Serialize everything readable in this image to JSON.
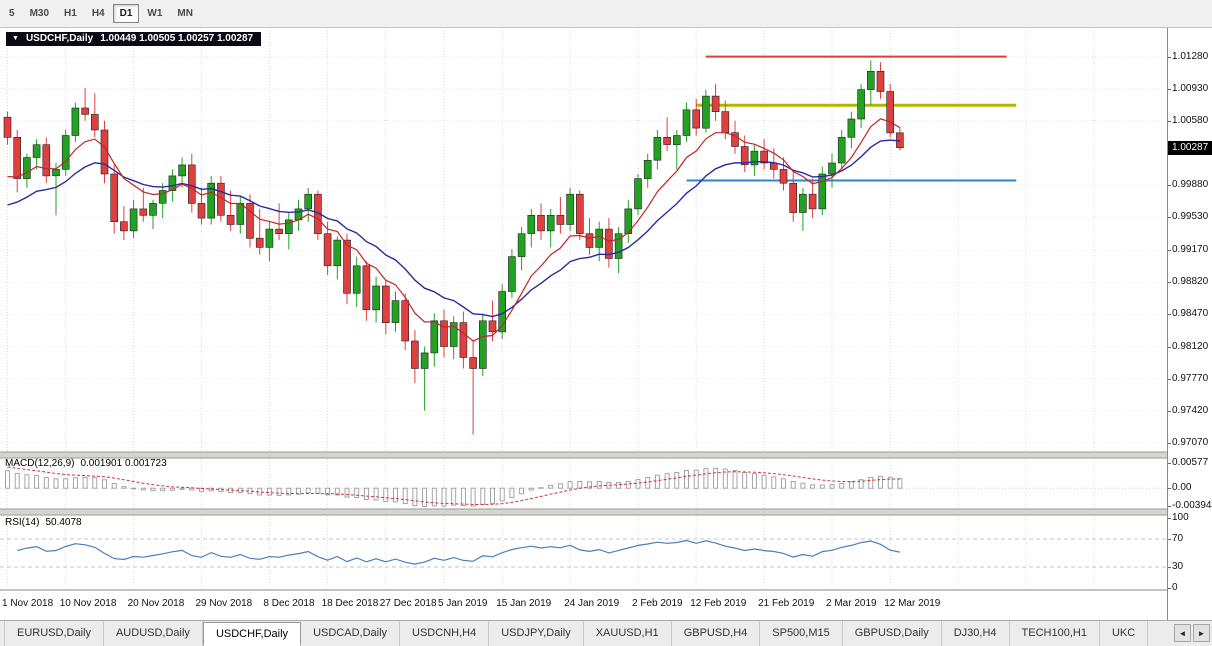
{
  "toolbar": {
    "timeframes": [
      {
        "label": "5",
        "active": false
      },
      {
        "label": "M30",
        "active": false
      },
      {
        "label": "H1",
        "active": false
      },
      {
        "label": "H4",
        "active": false
      },
      {
        "label": "D1",
        "active": true
      },
      {
        "label": "W1",
        "active": false
      },
      {
        "label": "MN",
        "active": false
      }
    ]
  },
  "chart": {
    "title_symbol": "USDCHF,Daily",
    "ohlc": "1.00449 1.00505 1.00257 1.00287",
    "dropdown_arrow": "▼"
  },
  "chart_data": {
    "type": "candlestick",
    "symbol": "USDCHF",
    "timeframe": "Daily",
    "current_price": "1.00287",
    "y_range": [
      0.9697,
      1.0157
    ],
    "price_axis_ticks": [
      "1.01280",
      "1.00930",
      "1.00580",
      "0.99880",
      "0.99530",
      "0.99170",
      "0.98820",
      "0.98470",
      "0.98120",
      "0.97770",
      "0.97420",
      "0.97070"
    ],
    "x_axis_ticks": [
      {
        "label": "1 Nov 2018",
        "index": 0
      },
      {
        "label": "10 Nov 2018",
        "index": 6
      },
      {
        "label": "20 Nov 2018",
        "index": 13
      },
      {
        "label": "29 Nov 2018",
        "index": 20
      },
      {
        "label": "8 Dec 2018",
        "index": 27
      },
      {
        "label": "18 Dec 2018",
        "index": 33
      },
      {
        "label": "27 Dec 2018",
        "index": 39
      },
      {
        "label": "5 Jan 2019",
        "index": 45
      },
      {
        "label": "15 Jan 2019",
        "index": 51
      },
      {
        "label": "24 Jan 2019",
        "index": 58
      },
      {
        "label": "2 Feb 2019",
        "index": 65
      },
      {
        "label": "12 Feb 2019",
        "index": 71
      },
      {
        "label": "21 Feb 2019",
        "index": 78
      },
      {
        "label": "2 Mar 2019",
        "index": 85
      },
      {
        "label": "12 Mar 2019",
        "index": 91
      }
    ],
    "candles": [
      [
        1.0062,
        1.0068,
        1.0032,
        1.004
      ],
      [
        1.004,
        1.0048,
        0.998,
        0.9995
      ],
      [
        0.9995,
        1.0022,
        0.9985,
        1.0018
      ],
      [
        1.0018,
        1.0038,
        1.0005,
        1.0032
      ],
      [
        1.0032,
        1.004,
        0.999,
        0.9998
      ],
      [
        0.9998,
        1.0012,
        0.9955,
        1.0005
      ],
      [
        1.0005,
        1.0048,
        0.9998,
        1.0042
      ],
      [
        1.0042,
        1.0078,
        1.0035,
        1.0072
      ],
      [
        1.0072,
        1.0094,
        1.0058,
        1.0065
      ],
      [
        1.0065,
        1.0088,
        1.004,
        1.0048
      ],
      [
        1.0048,
        1.0058,
        0.999,
        1.0
      ],
      [
        1.0,
        1.001,
        0.9935,
        0.9948
      ],
      [
        0.9948,
        0.9965,
        0.9928,
        0.9938
      ],
      [
        0.9938,
        0.9972,
        0.993,
        0.9962
      ],
      [
        0.9962,
        0.9985,
        0.9948,
        0.9955
      ],
      [
        0.9955,
        0.9972,
        0.994,
        0.9968
      ],
      [
        0.9968,
        0.999,
        0.9952,
        0.9982
      ],
      [
        0.9982,
        1.0005,
        0.997,
        0.9998
      ],
      [
        0.9998,
        1.0018,
        0.9985,
        1.001
      ],
      [
        1.001,
        1.0022,
        0.9958,
        0.9968
      ],
      [
        0.9968,
        0.9985,
        0.9945,
        0.9952
      ],
      [
        0.9952,
        0.9998,
        0.9945,
        0.999
      ],
      [
        0.999,
        0.9998,
        0.9948,
        0.9955
      ],
      [
        0.9955,
        0.9982,
        0.9938,
        0.9945
      ],
      [
        0.9945,
        0.9975,
        0.9935,
        0.9968
      ],
      [
        0.9968,
        0.9978,
        0.992,
        0.993
      ],
      [
        0.993,
        0.9962,
        0.9912,
        0.992
      ],
      [
        0.992,
        0.9948,
        0.9905,
        0.994
      ],
      [
        0.994,
        0.9968,
        0.9928,
        0.9935
      ],
      [
        0.9935,
        0.9958,
        0.9918,
        0.995
      ],
      [
        0.995,
        0.9972,
        0.9938,
        0.9962
      ],
      [
        0.9962,
        0.9985,
        0.9948,
        0.9978
      ],
      [
        0.9978,
        0.9982,
        0.9928,
        0.9935
      ],
      [
        0.9935,
        0.9948,
        0.989,
        0.99
      ],
      [
        0.99,
        0.9932,
        0.9885,
        0.9928
      ],
      [
        0.9928,
        0.9935,
        0.9858,
        0.987
      ],
      [
        0.987,
        0.991,
        0.9855,
        0.99
      ],
      [
        0.99,
        0.9905,
        0.984,
        0.9852
      ],
      [
        0.9852,
        0.9888,
        0.9838,
        0.9878
      ],
      [
        0.9878,
        0.9885,
        0.9825,
        0.9838
      ],
      [
        0.9838,
        0.9872,
        0.9828,
        0.9862
      ],
      [
        0.9862,
        0.987,
        0.9808,
        0.9818
      ],
      [
        0.9818,
        0.983,
        0.9772,
        0.9788
      ],
      [
        0.9788,
        0.9812,
        0.9742,
        0.9805
      ],
      [
        0.9805,
        0.9848,
        0.979,
        0.984
      ],
      [
        0.984,
        0.9852,
        0.98,
        0.9812
      ],
      [
        0.9812,
        0.9845,
        0.9798,
        0.9838
      ],
      [
        0.9838,
        0.985,
        0.9788,
        0.98
      ],
      [
        0.98,
        0.9818,
        0.9716,
        0.9788
      ],
      [
        0.9788,
        0.9848,
        0.978,
        0.984
      ],
      [
        0.984,
        0.9862,
        0.9818,
        0.9828
      ],
      [
        0.9828,
        0.988,
        0.982,
        0.9872
      ],
      [
        0.9872,
        0.9918,
        0.9865,
        0.991
      ],
      [
        0.991,
        0.9942,
        0.9895,
        0.9935
      ],
      [
        0.9935,
        0.9962,
        0.992,
        0.9955
      ],
      [
        0.9955,
        0.9968,
        0.9928,
        0.9938
      ],
      [
        0.9938,
        0.9962,
        0.992,
        0.9955
      ],
      [
        0.9955,
        0.9975,
        0.9935,
        0.9945
      ],
      [
        0.9945,
        0.9985,
        0.9938,
        0.9978
      ],
      [
        0.9978,
        0.9982,
        0.9928,
        0.9935
      ],
      [
        0.9935,
        0.9952,
        0.9912,
        0.992
      ],
      [
        0.992,
        0.9948,
        0.9905,
        0.994
      ],
      [
        0.994,
        0.9952,
        0.9898,
        0.9908
      ],
      [
        0.9908,
        0.9942,
        0.9892,
        0.9935
      ],
      [
        0.9935,
        0.9972,
        0.9925,
        0.9962
      ],
      [
        0.9962,
        1.0,
        0.9955,
        0.9995
      ],
      [
        0.9995,
        1.0022,
        0.9985,
        1.0015
      ],
      [
        1.0015,
        1.0048,
        1.0005,
        1.004
      ],
      [
        1.004,
        1.0062,
        1.0025,
        1.0032
      ],
      [
        1.0032,
        1.0048,
        1.0005,
        1.0042
      ],
      [
        1.0042,
        1.0078,
        1.0035,
        1.007
      ],
      [
        1.007,
        1.0082,
        1.0042,
        1.005
      ],
      [
        1.005,
        1.0092,
        1.0045,
        1.0085
      ],
      [
        1.0085,
        1.0098,
        1.0058,
        1.0068
      ],
      [
        1.0068,
        1.008,
        1.0038,
        1.0045
      ],
      [
        1.0045,
        1.0058,
        1.0022,
        1.003
      ],
      [
        1.003,
        1.0042,
        1.0002,
        1.001
      ],
      [
        1.001,
        1.0032,
        0.9998,
        1.0025
      ],
      [
        1.0025,
        1.0038,
        1.0005,
        1.0012
      ],
      [
        1.0012,
        1.0028,
        0.9995,
        1.0005
      ],
      [
        1.0005,
        1.0018,
        0.9982,
        0.999
      ],
      [
        0.999,
        1.0002,
        0.9948,
        0.9958
      ],
      [
        0.9958,
        0.9985,
        0.9938,
        0.9978
      ],
      [
        0.9978,
        0.9995,
        0.9952,
        0.9962
      ],
      [
        0.9962,
        1.0008,
        0.9955,
        1.0
      ],
      [
        1.0,
        1.0022,
        0.9985,
        1.0012
      ],
      [
        1.0012,
        1.0048,
        1.0005,
        1.004
      ],
      [
        1.004,
        1.0068,
        1.0028,
        1.006
      ],
      [
        1.006,
        1.0098,
        1.005,
        1.0092
      ],
      [
        1.0092,
        1.0124,
        1.0075,
        1.0112
      ],
      [
        1.0112,
        1.0122,
        1.0082,
        1.009
      ],
      [
        1.009,
        1.0098,
        1.004,
        1.00449
      ],
      [
        1.00449,
        1.00505,
        1.00257,
        1.00287
      ]
    ],
    "overlays": {
      "ma_fast": {
        "period": 8,
        "seed": 0.9985,
        "color": "#c02626"
      },
      "ma_slow": {
        "period": 17,
        "seed": 0.9957,
        "color": "#2a2aa0"
      },
      "hlines": [
        {
          "price": 1.0128,
          "from_index": 72,
          "to_index": 103,
          "color": "#e03a3a",
          "width": 2
        },
        {
          "price": 1.0075,
          "from_index": 71,
          "to_index": 104,
          "color": "#b5b500",
          "width": 3
        },
        {
          "price": 0.9993,
          "from_index": 70,
          "to_index": 104,
          "color": "#2a84d2",
          "width": 2
        }
      ]
    },
    "indicators": {
      "macd": {
        "label": "MACD(12,26,9)",
        "values": "0.001901 0.001723",
        "range": [
          -0.0047,
          0.0066
        ],
        "scale_labels": [
          "0.00577",
          "0.00",
          "-0.003944"
        ],
        "seed12": -0.0008,
        "seed26": -0.005,
        "seed_signal": 0.005,
        "hist_color": "#9a9a9a",
        "signal_color": "#d23434"
      },
      "rsi": {
        "label": "RSI(14)",
        "value": "50.4078",
        "levels": [
          70,
          30
        ],
        "scale_labels": [
          "100",
          "70",
          "30",
          "0"
        ],
        "seed_gain": 0.0012,
        "seed_loss": 0.0007,
        "line_color": "#4a7ebb"
      }
    },
    "colors": {
      "bull": "#23a123",
      "bear": "#de4040",
      "grid": "#d9d9d9"
    }
  },
  "tabs": {
    "items": [
      {
        "label": "EURUSD,Daily",
        "active": false
      },
      {
        "label": "AUDUSD,Daily",
        "active": false
      },
      {
        "label": "USDCHF,Daily",
        "active": true
      },
      {
        "label": "USDCAD,Daily",
        "active": false
      },
      {
        "label": "USDCNH,H4",
        "active": false
      },
      {
        "label": "USDJPY,Daily",
        "active": false
      },
      {
        "label": "XAUUSD,H1",
        "active": false
      },
      {
        "label": "GBPUSD,H4",
        "active": false
      },
      {
        "label": "SP500,M15",
        "active": false
      },
      {
        "label": "GBPUSD,Daily",
        "active": false
      },
      {
        "label": "DJ30,H4",
        "active": false
      },
      {
        "label": "TECH100,H1",
        "active": false
      },
      {
        "label": "UKC",
        "active": false
      }
    ],
    "scroll_left": "◄",
    "scroll_right": "►"
  }
}
